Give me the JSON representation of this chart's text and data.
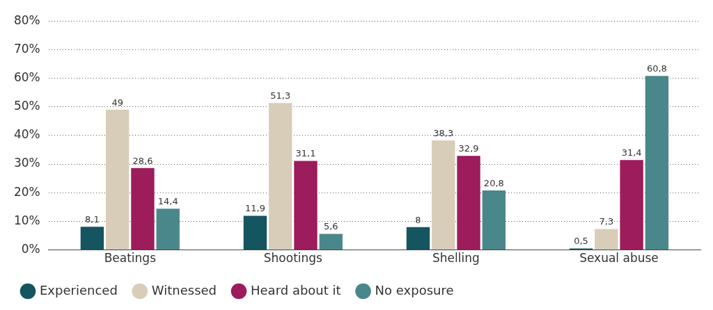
{
  "chart_data": {
    "type": "bar",
    "categories": [
      "Beatings",
      "Shootings",
      "Shelling",
      "Sexual abuse"
    ],
    "series": [
      {
        "name": "Experienced",
        "color": "#14555f",
        "values": [
          8.1,
          11.9,
          8,
          0.5
        ],
        "value_labels": [
          "8,1",
          "11,9",
          "8",
          "0,5"
        ]
      },
      {
        "name": "Witnessed",
        "color": "#d8cdb9",
        "values": [
          49,
          51.3,
          38.3,
          7.3
        ],
        "value_labels": [
          "49",
          "51,3",
          "38,3",
          "7,3"
        ]
      },
      {
        "name": "Heard about it",
        "color": "#9c1c5c",
        "values": [
          28.6,
          31.1,
          32.9,
          31.4
        ],
        "value_labels": [
          "28,6",
          "31,1",
          "32,9",
          "31,4"
        ]
      },
      {
        "name": "No exposure",
        "color": "#4a878b",
        "values": [
          14.4,
          5.6,
          20.8,
          60.8
        ],
        "value_labels": [
          "14,4",
          "5,6",
          "20,8",
          "60,8"
        ]
      }
    ],
    "ylim": [
      0,
      80
    ],
    "yticks": [
      {
        "value": 0,
        "label": "0%"
      },
      {
        "value": 10,
        "label": "10%"
      },
      {
        "value": 20,
        "label": "20%"
      },
      {
        "value": 30,
        "label": "30%"
      },
      {
        "value": 40,
        "label": "40%"
      },
      {
        "value": 50,
        "label": "50%"
      },
      {
        "value": 60,
        "label": "60%"
      },
      {
        "value": 70,
        "label": "70%"
      },
      {
        "value": 80,
        "label": "80%"
      }
    ],
    "grid": "y",
    "legend": "bottom left"
  }
}
